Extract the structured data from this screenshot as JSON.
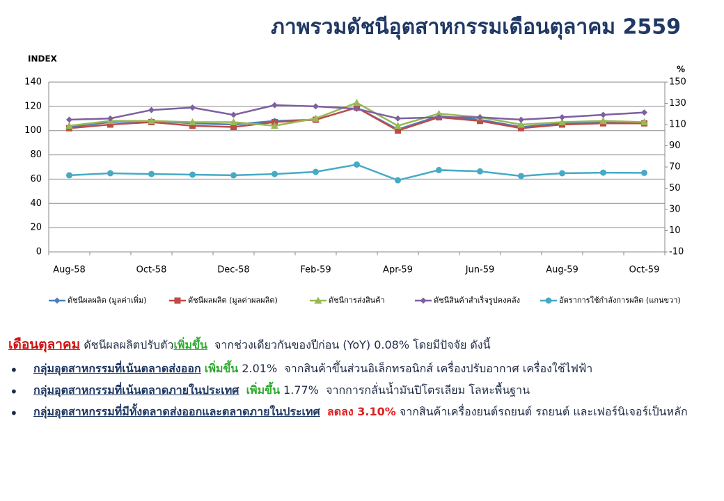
{
  "chart_data": {
    "type": "line",
    "title": "ภาพรวมดัชนีอุตสาหกรรมเดือนตุลาคม  2559",
    "y_label": "INDEX",
    "y2_label": "%",
    "categories": [
      "Aug-58",
      null,
      "Oct-58",
      null,
      "Dec-58",
      null,
      "Feb-59",
      null,
      "Apr-59",
      null,
      "Jun-59",
      null,
      "Aug-59",
      null,
      "Oct-59"
    ],
    "ylim": [
      0,
      140
    ],
    "yticks": [
      0,
      20,
      40,
      60,
      80,
      100,
      120,
      140
    ],
    "y2lim": [
      -10,
      150
    ],
    "y2ticks": [
      -10,
      10,
      30,
      50,
      70,
      90,
      110,
      130,
      150
    ],
    "grid": true,
    "legend": "bottom",
    "series": [
      {
        "name": "ดัชนีผลผลิต (มูลค่าเพิ่ม)",
        "color": "#4a7ebb",
        "marker": "diamond",
        "values": [
          103,
          107,
          108,
          106,
          105,
          108,
          109,
          119,
          101,
          112,
          109,
          103,
          106,
          107,
          106
        ]
      },
      {
        "name": "ดัชนีผลผลิต (มูลค่าผลผลิต)",
        "color": "#be4b48",
        "marker": "square",
        "values": [
          102,
          105,
          107,
          104,
          103,
          107,
          109,
          119,
          100,
          111,
          108,
          102,
          105,
          106,
          106
        ]
      },
      {
        "name": "ดัชนีการส่งสินค้า",
        "color": "#98b954",
        "marker": "triangle",
        "values": [
          104,
          108,
          108,
          107,
          107,
          104,
          110,
          123,
          104,
          114,
          111,
          105,
          107,
          108,
          107
        ]
      },
      {
        "name": "ดัชนีสินค้าสำเร็จรูปคงคลัง",
        "color": "#7d60a0",
        "marker": "diamond",
        "values": [
          109,
          110,
          117,
          119,
          113,
          121,
          120,
          118,
          110,
          111,
          111,
          109,
          111,
          113,
          115
        ]
      },
      {
        "name": "อัตราการใช้กำลังการผลิต (แกนขวา)",
        "color": "#46aac5",
        "marker": "circle",
        "axis": "y2",
        "values": [
          62.2,
          64.1,
          63.4,
          62.8,
          62.2,
          63.4,
          65.4,
          72.3,
          57.5,
          67.1,
          65.9,
          61.5,
          64.1,
          64.7,
          64.5
        ]
      }
    ]
  },
  "notes": {
    "lead": {
      "month": "เดือนตุลาคม",
      "text1": "ดัชนีผลผลิตปรับตัว",
      "up": "เพิ่มขึ้น",
      "text2": "จากช่วงเดียวกันของปีก่อน (YoY) 0.08% โดยมีปัจจัย ดังนี้"
    },
    "bullets": [
      {
        "group": "กลุ่มอุตสาหกรรมที่เน้นตลาดส่งออก",
        "change": "เพิ่มขึ้น",
        "pct": "2.01%",
        "reason": "จากสินค้าขึ้นส่วนอิเล็กทรอนิกส์ เครื่องปรับอากาศ เครื่องใช้ไฟฟ้า"
      },
      {
        "group": "กลุ่มอุตสาหกรรมที่เน้นตลาดภายในประเทศ",
        "change": "เพิ่มขึ้น",
        "pct": "1.77%",
        "reason": "จากการกลั่นน้ำมันปิโตรเลียม โลหะพื้นฐาน"
      },
      {
        "group": "กลุ่มอุตสาหกรรมที่มีทั้งตลาดส่งออกและตลาดภายในประเทศ",
        "change": "ลดลง 3.10%",
        "reason": "จากสินค้าเครื่องยนต์รถยนต์ รถยนต์ และเฟอร์นิเจอร์เป็นหลัก"
      }
    ]
  }
}
